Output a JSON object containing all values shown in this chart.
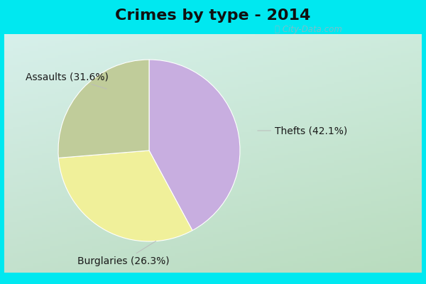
{
  "title": "Crimes by type - 2014",
  "slices": [
    {
      "label": "Thefts",
      "pct": "42.1%",
      "value": 42.1,
      "color": "#c8aee0"
    },
    {
      "label": "Assaults",
      "pct": "31.6%",
      "value": 31.6,
      "color": "#f0f09a"
    },
    {
      "label": "Burglaries",
      "pct": "26.3%",
      "value": 26.3,
      "color": "#c0cc9a"
    }
  ],
  "bg_cyan": "#00e8f0",
  "bg_grad_top": "#d8f0ee",
  "bg_grad_bottom": "#c8e8cc",
  "title_fontsize": 16,
  "label_fontsize": 10,
  "watermark": "City-Data.com",
  "startangle": 90,
  "counterclock": false
}
